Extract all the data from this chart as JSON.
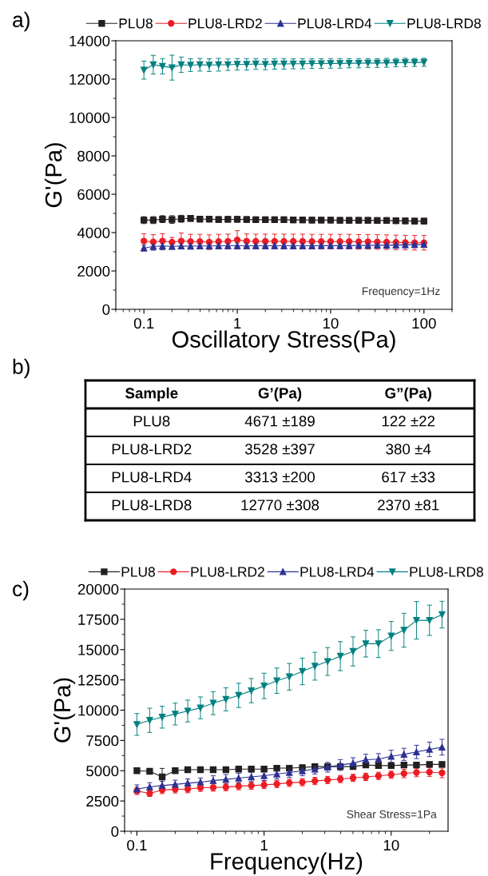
{
  "chart_data": [
    {
      "type": "line",
      "xlabel": "Oscillatory Stress(Pa)",
      "ylabel": "G'(Pa)",
      "annotations": [
        "a)",
        "Frequency=1Hz"
      ],
      "log": "x",
      "xlim": [
        0.05,
        200
      ],
      "xticks": [
        0.1,
        1,
        10,
        100
      ],
      "ylim": [
        0,
        14000
      ],
      "yticks": [
        0,
        2000,
        4000,
        6000,
        8000,
        10000,
        12000,
        14000
      ],
      "legend": "top",
      "grid": false,
      "line_style": "solid",
      "x": [
        0.1,
        0.126,
        0.158,
        0.2,
        0.251,
        0.316,
        0.398,
        0.501,
        0.631,
        0.794,
        1,
        1.26,
        1.58,
        2,
        2.51,
        3.16,
        3.98,
        5.01,
        6.31,
        7.94,
        10,
        12.6,
        15.8,
        20,
        25.1,
        31.6,
        39.8,
        50.1,
        63.1,
        79.4,
        100
      ],
      "series": [
        {
          "name": "PLU8",
          "color": "#231f20",
          "marker": "square",
          "values": [
            4650,
            4650,
            4700,
            4680,
            4720,
            4740,
            4700,
            4700,
            4680,
            4690,
            4690,
            4680,
            4670,
            4670,
            4670,
            4670,
            4660,
            4660,
            4650,
            4650,
            4650,
            4640,
            4640,
            4640,
            4640,
            4630,
            4630,
            4620,
            4610,
            4600,
            4600
          ],
          "errors": [
            180,
            180,
            180,
            200,
            180,
            150,
            150,
            150,
            150,
            150,
            150,
            150,
            150,
            150,
            150,
            150,
            150,
            150,
            150,
            150,
            150,
            150,
            150,
            150,
            150,
            150,
            150,
            150,
            150,
            150,
            150
          ]
        },
        {
          "name": "PLU8-LRD2",
          "color": "#ed1c24",
          "marker": "circle",
          "values": [
            3560,
            3510,
            3560,
            3500,
            3560,
            3530,
            3530,
            3500,
            3530,
            3540,
            3620,
            3550,
            3540,
            3540,
            3540,
            3540,
            3540,
            3540,
            3530,
            3530,
            3530,
            3530,
            3530,
            3520,
            3520,
            3510,
            3500,
            3490,
            3480,
            3470,
            3470
          ],
          "errors": [
            380,
            380,
            380,
            250,
            420,
            380,
            380,
            380,
            380,
            380,
            480,
            380,
            380,
            380,
            380,
            380,
            380,
            380,
            380,
            380,
            380,
            380,
            380,
            380,
            380,
            380,
            380,
            380,
            380,
            380,
            380
          ]
        },
        {
          "name": "PLU8-LRD4",
          "color": "#2e3192",
          "marker": "triangle",
          "values": [
            3190,
            3280,
            3300,
            3280,
            3300,
            3290,
            3300,
            3300,
            3310,
            3310,
            3310,
            3310,
            3310,
            3310,
            3310,
            3310,
            3310,
            3310,
            3310,
            3320,
            3320,
            3320,
            3320,
            3330,
            3330,
            3340,
            3340,
            3350,
            3360,
            3370,
            3380
          ],
          "errors": [
            150,
            200,
            200,
            150,
            150,
            150,
            150,
            150,
            150,
            150,
            150,
            150,
            150,
            150,
            150,
            150,
            150,
            150,
            150,
            150,
            150,
            150,
            150,
            150,
            150,
            150,
            150,
            150,
            150,
            150,
            150
          ]
        },
        {
          "name": "PLU8-LRD8",
          "color": "#00807f",
          "marker": "triangle_down",
          "values": [
            12470,
            12750,
            12670,
            12600,
            12750,
            12730,
            12750,
            12730,
            12750,
            12750,
            12770,
            12770,
            12790,
            12770,
            12790,
            12790,
            12800,
            12800,
            12810,
            12810,
            12820,
            12820,
            12830,
            12830,
            12840,
            12840,
            12850,
            12860,
            12870,
            12870,
            12880
          ],
          "errors": [
            470,
            490,
            400,
            650,
            400,
            330,
            330,
            330,
            330,
            300,
            300,
            300,
            280,
            280,
            270,
            270,
            260,
            260,
            250,
            250,
            250,
            250,
            240,
            240,
            230,
            230,
            230,
            220,
            220,
            210,
            210
          ]
        }
      ]
    },
    {
      "type": "other",
      "annotations": [
        "b)",
        "Sample",
        "G’(Pa)",
        "G”(Pa)",
        "PLU8",
        "4671 ±189",
        "122 ±22",
        "PLU8-LRD2",
        "3528 ±397",
        "380 ±4",
        "PLU8-LRD4",
        "3313 ±200",
        "617 ±33",
        "PLU8-LRD8",
        "12770 ±308",
        "2370 ±81"
      ]
    },
    {
      "type": "line",
      "xlabel": "Frequency(Hz)",
      "ylabel": "G'(Pa)",
      "annotations": [
        "c)",
        "Shear Stress=1Pa"
      ],
      "log": "x",
      "xlim": [
        0.08,
        28
      ],
      "xticks": [
        0.1,
        1,
        10
      ],
      "ylim": [
        0,
        20000
      ],
      "yticks": [
        0,
        2500,
        5000,
        7500,
        10000,
        12500,
        15000,
        17500,
        20000
      ],
      "legend": "top",
      "grid": false,
      "line_style": "solid",
      "x": [
        0.1,
        0.126,
        0.158,
        0.2,
        0.251,
        0.316,
        0.398,
        0.501,
        0.631,
        0.794,
        1,
        1.26,
        1.58,
        2,
        2.51,
        3.16,
        3.98,
        5.01,
        6.31,
        7.94,
        10,
        12.6,
        15.8,
        20,
        25.1
      ],
      "series": [
        {
          "name": "PLU8",
          "color": "#231f20",
          "marker": "square",
          "values": [
            5000,
            4950,
            4490,
            5000,
            5080,
            5080,
            5080,
            5080,
            5130,
            5130,
            5130,
            5210,
            5210,
            5260,
            5340,
            5340,
            5340,
            5340,
            5470,
            5420,
            5420,
            5470,
            5470,
            5520,
            5520
          ],
          "errors": [
            150,
            200,
            700,
            150,
            150,
            150,
            150,
            150,
            150,
            150,
            150,
            150,
            150,
            150,
            200,
            200,
            200,
            200,
            200,
            200,
            200,
            200,
            200,
            200,
            200
          ]
        },
        {
          "name": "PLU8-LRD2",
          "color": "#ed1c24",
          "marker": "circle",
          "values": [
            3330,
            3120,
            3410,
            3460,
            3480,
            3590,
            3610,
            3640,
            3720,
            3770,
            3820,
            3900,
            4000,
            4050,
            4150,
            4230,
            4310,
            4410,
            4490,
            4570,
            4670,
            4770,
            4850,
            4880,
            4820
          ],
          "errors": [
            300,
            250,
            300,
            300,
            300,
            300,
            300,
            300,
            300,
            300,
            300,
            300,
            300,
            300,
            300,
            300,
            300,
            300,
            300,
            300,
            300,
            350,
            350,
            350,
            400
          ]
        },
        {
          "name": "PLU8-LRD4",
          "color": "#2e3192",
          "marker": "triangle",
          "values": [
            3480,
            3660,
            3770,
            3870,
            3970,
            4050,
            4180,
            4280,
            4390,
            4490,
            4590,
            4720,
            4850,
            4980,
            5130,
            5290,
            5470,
            5620,
            5910,
            5960,
            6190,
            6350,
            6550,
            6760,
            6940
          ],
          "errors": [
            350,
            350,
            350,
            350,
            350,
            350,
            400,
            400,
            400,
            400,
            400,
            400,
            400,
            400,
            400,
            400,
            450,
            450,
            450,
            450,
            500,
            500,
            550,
            600,
            650
          ]
        },
        {
          "name": "PLU8-LRD8",
          "color": "#00807f",
          "marker": "triangle_down",
          "values": [
            8820,
            9160,
            9420,
            9680,
            9930,
            10190,
            10580,
            10890,
            11220,
            11610,
            12000,
            12430,
            12760,
            13200,
            13630,
            14020,
            14460,
            14850,
            15490,
            15490,
            16130,
            16600,
            17420,
            17420,
            17890
          ],
          "errors": [
            900,
            1000,
            900,
            900,
            900,
            900,
            950,
            950,
            1000,
            1000,
            1050,
            1050,
            1100,
            1100,
            1150,
            1150,
            1200,
            1200,
            1100,
            1150,
            1200,
            1400,
            1550,
            1250,
            1100
          ]
        }
      ]
    }
  ]
}
